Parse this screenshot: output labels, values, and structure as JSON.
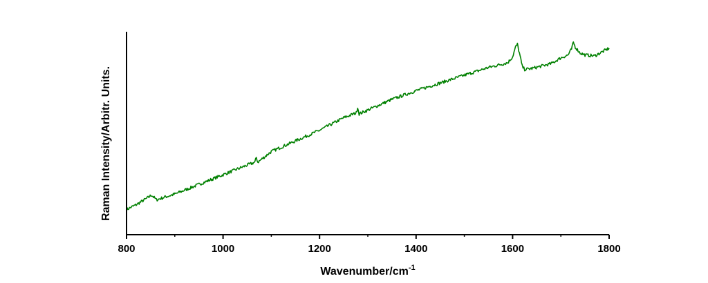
{
  "chart_data": {
    "type": "line",
    "title": "",
    "xlabel": "Wavenumber/cm",
    "xlabel_superscript": "-1",
    "ylabel": "Raman Intensity/Arbitr. Units.",
    "xlim": [
      800,
      1800
    ],
    "ylim": [
      0,
      100
    ],
    "y_ticks_shown": false,
    "grid": false,
    "legend": "none",
    "x_ticks": [
      800,
      1000,
      1200,
      1400,
      1600,
      1800
    ],
    "x_tick_labels": [
      "800",
      "1000",
      "1200",
      "1400",
      "1600",
      "1800"
    ],
    "series": [
      {
        "color": "#008000",
        "x": [
          800,
          820,
          840,
          852,
          856,
          862,
          880,
          900,
          950,
          1000,
          1050,
          1066,
          1069,
          1072,
          1100,
          1150,
          1200,
          1250,
          1276,
          1279,
          1282,
          1300,
          1350,
          1400,
          1450,
          1500,
          1550,
          1590,
          1600,
          1606,
          1610,
          1614,
          1620,
          1625,
          1640,
          1680,
          1700,
          1715,
          1722,
          1726,
          1730,
          1740,
          1750,
          1770,
          1800
        ],
        "y": [
          13,
          15.5,
          18.5,
          20.5,
          19.5,
          18,
          19.5,
          21,
          26,
          31,
          36,
          37.5,
          40,
          37.5,
          43,
          48.5,
          54,
          60.5,
          63,
          66,
          62.5,
          64.5,
          70,
          74.5,
          78.5,
          82.5,
          86.5,
          89,
          92,
          97,
          98.5,
          94,
          87,
          85.5,
          86,
          88.5,
          91.5,
          93,
          96,
          99.5,
          97,
          94,
          93,
          92.5,
          96.5
        ]
      }
    ]
  }
}
